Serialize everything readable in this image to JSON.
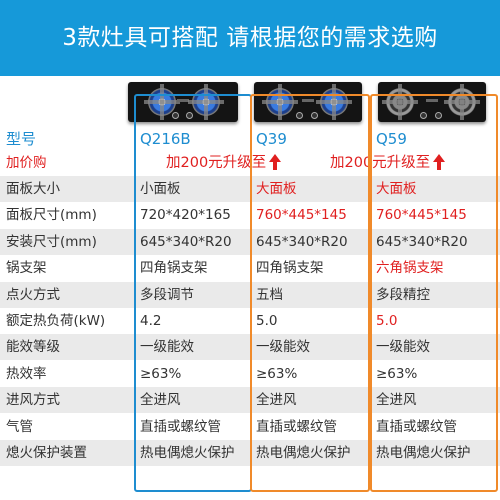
{
  "banner": {
    "title": "3款灶具可搭配  请根据您的需求选购",
    "background": "#1699d9"
  },
  "products": [
    {
      "model": "Q216B",
      "burner_style": "blue",
      "panel_color": "#1e8dd0"
    },
    {
      "model": "Q39",
      "burner_style": "blue",
      "panel_color": "#f08a2a"
    },
    {
      "model": "Q59",
      "burner_style": "plain",
      "panel_color": "#f08a2a"
    }
  ],
  "promo": {
    "label": "加价购",
    "upgrade_q39": "加200元升级至",
    "upgrade_q59": "加200元升级至"
  },
  "header_label": "型号",
  "specs": [
    {
      "label": "面板大小",
      "values": [
        "小面板",
        "大面板",
        "大面板"
      ],
      "red": [
        false,
        true,
        true
      ]
    },
    {
      "label": "面板尺寸(mm)",
      "values": [
        "720*420*165",
        "760*445*145",
        "760*445*145"
      ],
      "red": [
        false,
        true,
        true
      ]
    },
    {
      "label": "安装尺寸(mm)",
      "values": [
        "645*340*R20",
        "645*340*R20",
        "645*340*R20"
      ],
      "red": [
        false,
        false,
        false
      ]
    },
    {
      "label": "锅支架",
      "values": [
        "四角锅支架",
        "四角锅支架",
        "六角锅支架"
      ],
      "red": [
        false,
        false,
        true
      ]
    },
    {
      "label": "点火方式",
      "values": [
        "多段调节",
        "五档",
        "多段精控"
      ],
      "red": [
        false,
        false,
        false
      ]
    },
    {
      "label": "额定热负荷(kW)",
      "values": [
        "4.2",
        "5.0",
        "5.0"
      ],
      "red": [
        false,
        false,
        true
      ]
    },
    {
      "label": "能效等级",
      "values": [
        "一级能效",
        "一级能效",
        "一级能效"
      ],
      "red": [
        false,
        false,
        false
      ]
    },
    {
      "label": "热效率",
      "values": [
        "≥63%",
        "≥63%",
        "≥63%"
      ],
      "red": [
        false,
        false,
        false
      ]
    },
    {
      "label": "进风方式",
      "values": [
        "全进风",
        "全进风",
        "全进风"
      ],
      "red": [
        false,
        false,
        false
      ]
    },
    {
      "label": "气管",
      "values": [
        "直插或螺纹管",
        "直插或螺纹管",
        "直插或螺纹管"
      ],
      "red": [
        false,
        false,
        false
      ]
    },
    {
      "label": "熄火保护装置",
      "values": [
        "热电偶熄火保护",
        "热电偶熄火保护",
        "热电偶熄火保护"
      ],
      "red": [
        false,
        false,
        false
      ]
    }
  ],
  "colors": {
    "accent_blue": "#1e8dd0",
    "accent_orange": "#f08a2a",
    "highlight_red": "#e02020",
    "row_alt": "#eaeaea"
  }
}
